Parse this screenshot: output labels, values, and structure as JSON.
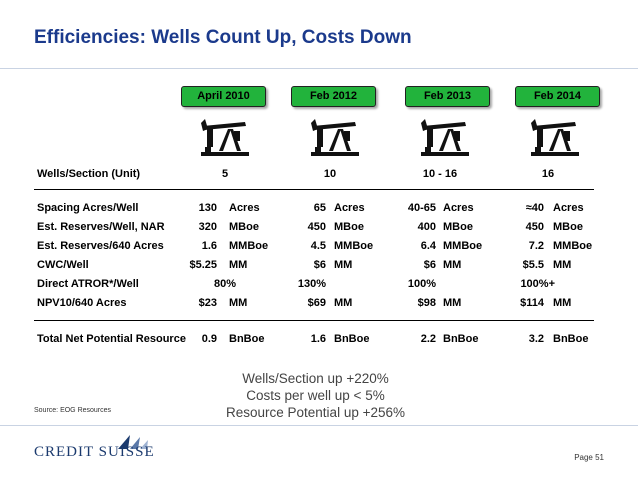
{
  "title": "Efficiencies: Wells Count Up, Costs Down",
  "columns": [
    {
      "label": "April 2010",
      "color": "#22b33c"
    },
    {
      "label": "Feb 2012",
      "color": "#22b33c"
    },
    {
      "label": "Feb 2013",
      "color": "#22b33c"
    },
    {
      "label": "Feb 2014",
      "color": "#22b33c"
    }
  ],
  "icon": "pumpjack-icon",
  "rows": [
    {
      "label": "Wells/Section (Unit)",
      "cells": [
        {
          "v": "5",
          "u": ""
        },
        {
          "v": "10",
          "u": ""
        },
        {
          "v": "10 - 16",
          "u": ""
        },
        {
          "v": "16",
          "u": ""
        }
      ]
    },
    {
      "label": "Spacing Acres/Well",
      "cells": [
        {
          "v": "130",
          "u": "Acres"
        },
        {
          "v": "65",
          "u": "Acres"
        },
        {
          "v": "40-65",
          "u": "Acres"
        },
        {
          "v": "≈40",
          "u": "Acres"
        }
      ]
    },
    {
      "label": "Est. Reserves/Well, NAR",
      "cells": [
        {
          "v": "320",
          "u": "MBoe"
        },
        {
          "v": "450",
          "u": "MBoe"
        },
        {
          "v": "400",
          "u": "MBoe"
        },
        {
          "v": "450",
          "u": "MBoe"
        }
      ]
    },
    {
      "label": "Est. Reserves/640 Acres",
      "cells": [
        {
          "v": "1.6",
          "u": "MMBoe"
        },
        {
          "v": "4.5",
          "u": "MMBoe"
        },
        {
          "v": "6.4",
          "u": "MMBoe"
        },
        {
          "v": "7.2",
          "u": "MMBoe"
        }
      ]
    },
    {
      "label": "CWC/Well",
      "cells": [
        {
          "v": "$5.25",
          "u": "MM"
        },
        {
          "v": "$6",
          "u": "MM"
        },
        {
          "v": "$6",
          "u": "MM"
        },
        {
          "v": "$5.5",
          "u": "MM"
        }
      ]
    },
    {
      "label": "Direct ATROR*/Well",
      "cells": [
        {
          "v": "80%",
          "u": ""
        },
        {
          "v": "130%",
          "u": ""
        },
        {
          "v": "100%",
          "u": ""
        },
        {
          "v": "100%+",
          "u": ""
        }
      ]
    },
    {
      "label": "NPV10/640 Acres",
      "cells": [
        {
          "v": "$23",
          "u": "MM"
        },
        {
          "v": "$69",
          "u": "MM"
        },
        {
          "v": "$98",
          "u": "MM"
        },
        {
          "v": "$114",
          "u": "MM"
        }
      ]
    },
    {
      "label": "Total Net Potential Resource",
      "cells": [
        {
          "v": "0.9",
          "u": "BnBoe"
        },
        {
          "v": "1.6",
          "u": "BnBoe"
        },
        {
          "v": "2.2",
          "u": "BnBoe"
        },
        {
          "v": "3.2",
          "u": "BnBoe"
        }
      ]
    }
  ],
  "summary": [
    "Wells/Section up +220%",
    "Costs per well up < 5%",
    "Resource Potential up +256%"
  ],
  "source": "Source: EOG Resources",
  "logo": "CREDIT SUISSE",
  "page": "Page 51"
}
